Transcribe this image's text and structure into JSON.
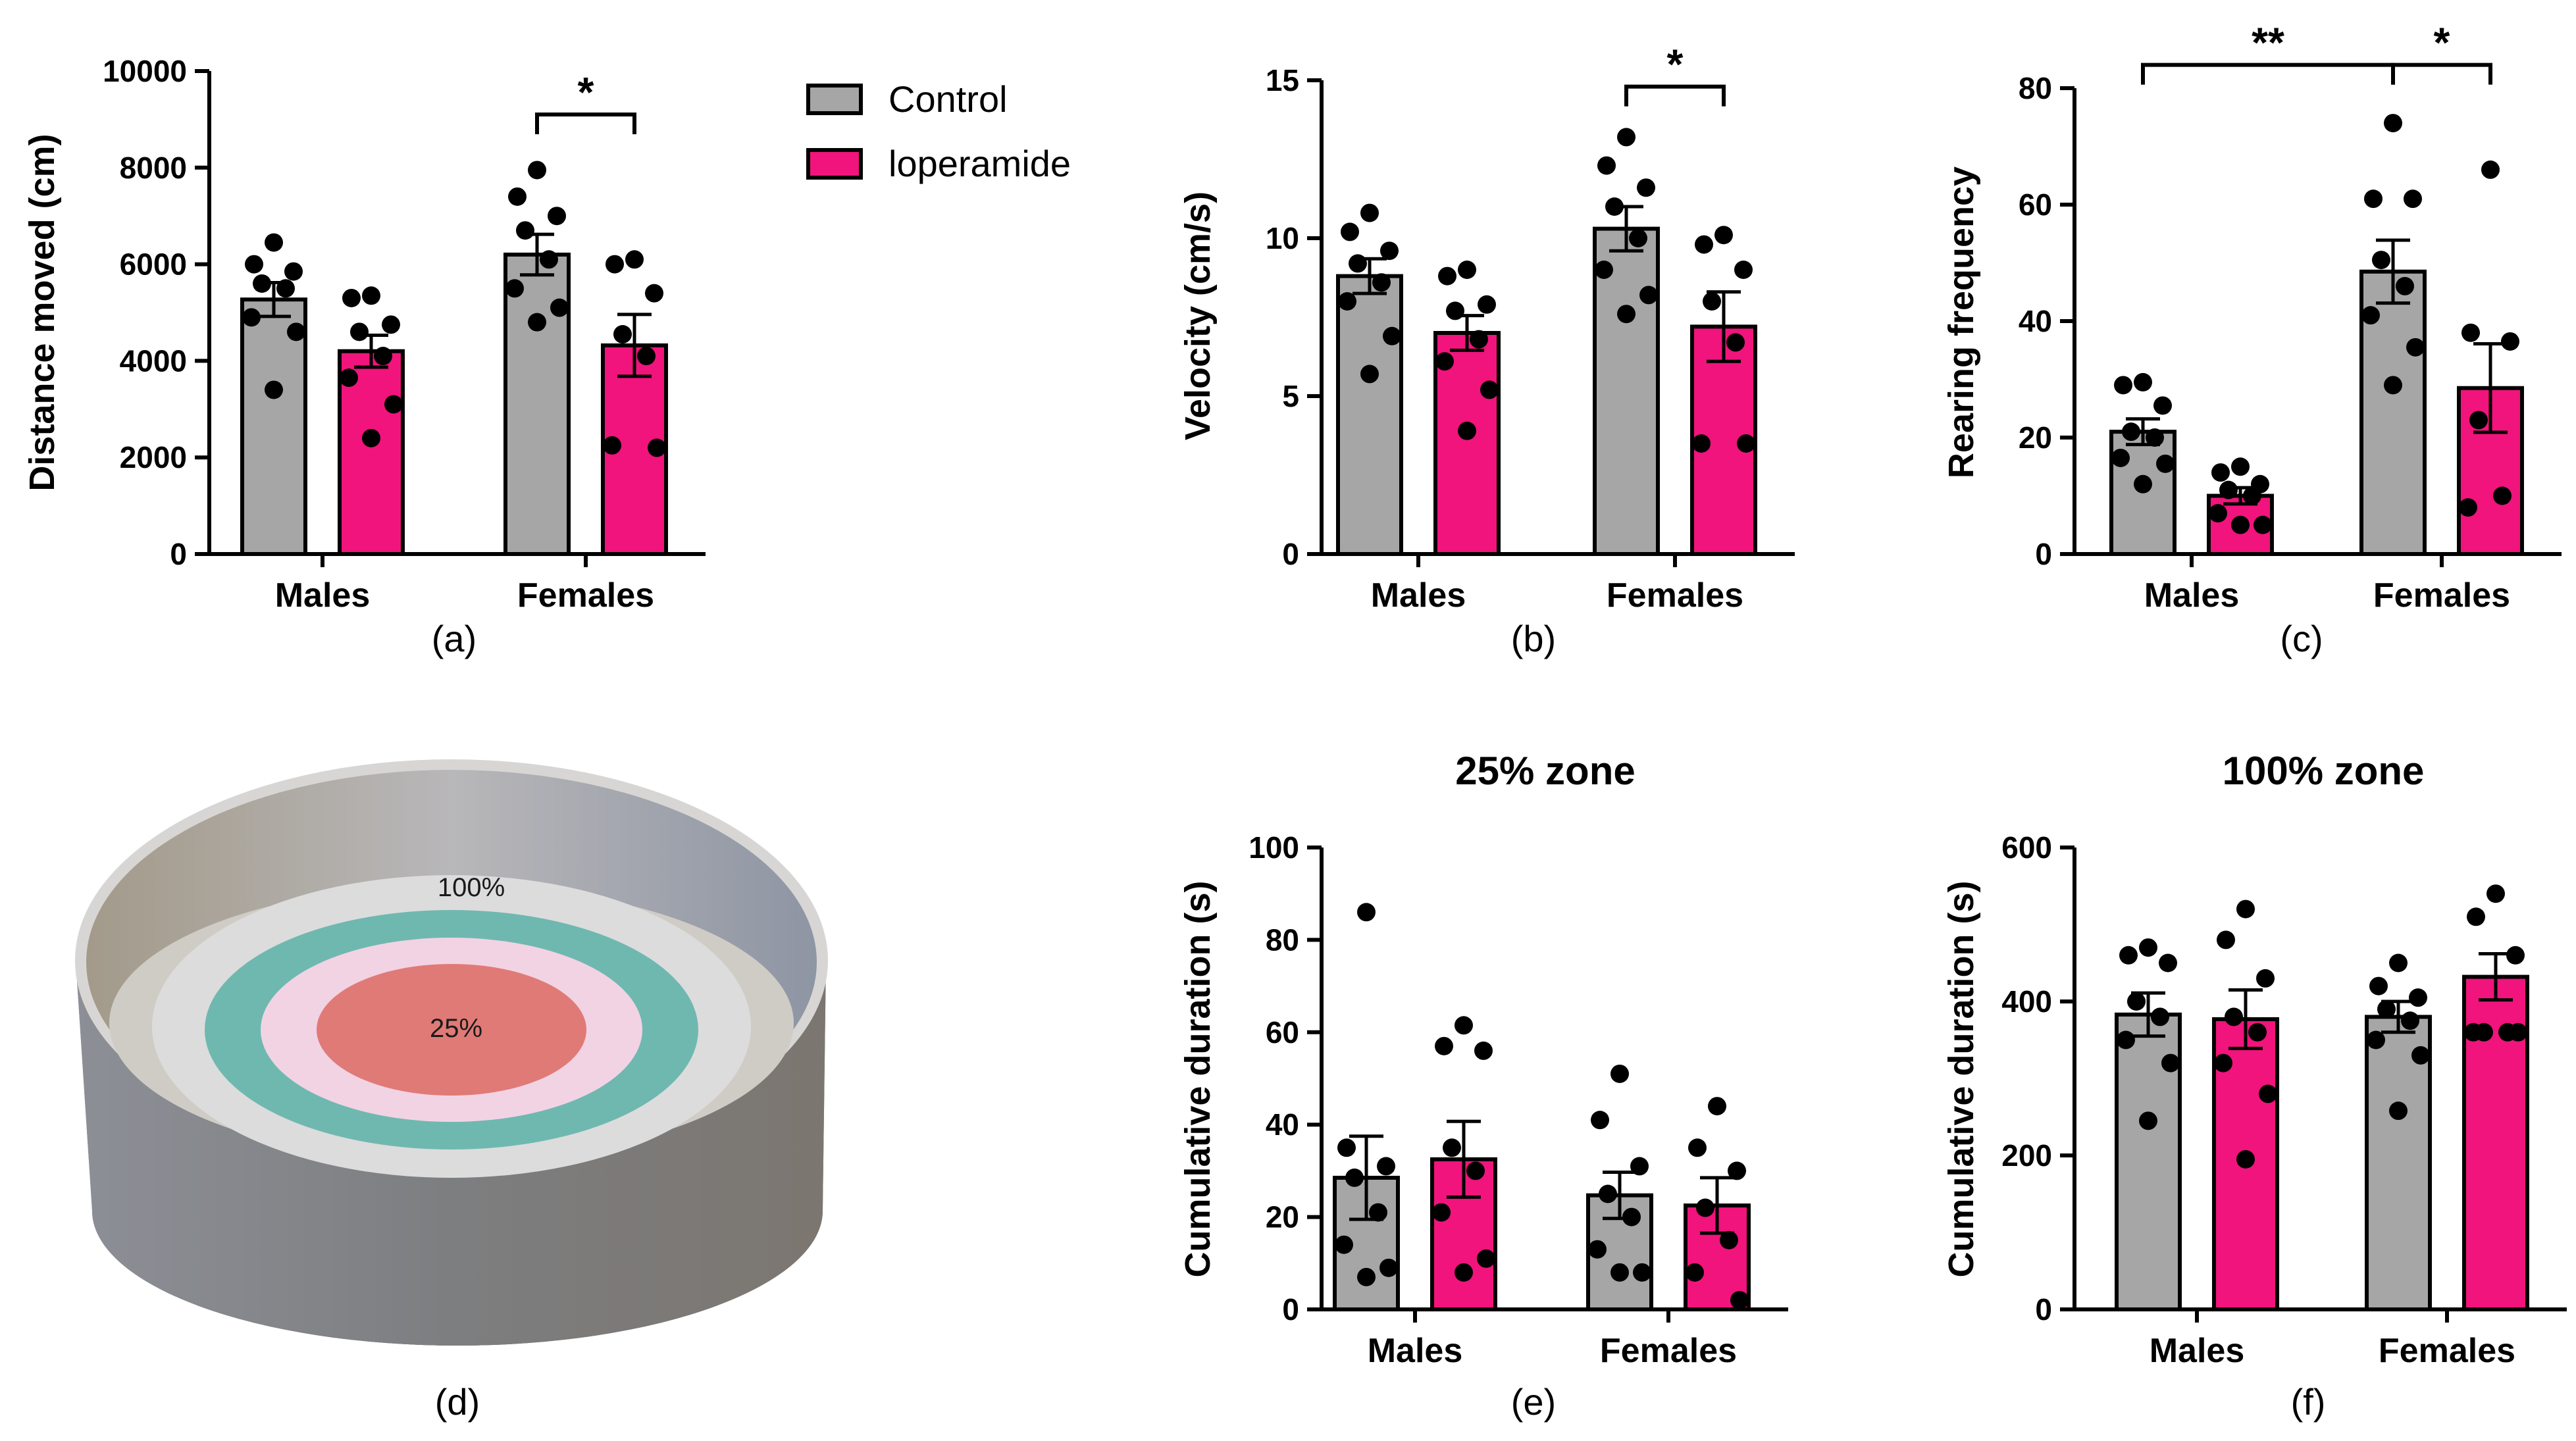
{
  "legend": {
    "entries": [
      {
        "label": "Control",
        "color": "#a6a6a6"
      },
      {
        "label": "loperamide",
        "color": "#f0147c"
      }
    ]
  },
  "arena": {
    "caption": "(d)",
    "zone_outer_label": "100%",
    "zone_inner_label": "25%",
    "colors": {
      "wall": "#8a8c90",
      "floor": "#cfccc6",
      "ring_light": "#dcdcdc",
      "ring_teal": "#6fb8b0",
      "ring_pink": "#f1d3e4",
      "center": "#e07a76"
    }
  },
  "chart_data": [
    {
      "id": "a",
      "type": "bar",
      "caption": "(a)",
      "title": "",
      "ylabel": "Distance moved (cm)",
      "ylim": [
        0,
        10000
      ],
      "yticks": [
        0,
        2000,
        4000,
        6000,
        8000,
        10000
      ],
      "categories": [
        "Males",
        "Females"
      ],
      "series": [
        {
          "name": "Control",
          "color": "#a6a6a6",
          "values": [
            5270,
            6200
          ],
          "sem": [
            350,
            420
          ],
          "points": [
            [
              6450,
              6000,
              5850,
              5600,
              5500,
              4900,
              4600,
              3400
            ],
            [
              7950,
              7400,
              7000,
              6700,
              6100,
              5500,
              5100,
              4800
            ]
          ]
        },
        {
          "name": "loperamide",
          "color": "#f0147c",
          "values": [
            4200,
            4320
          ],
          "sem": [
            330,
            640
          ],
          "points": [
            [
              5350,
              5300,
              4750,
              4600,
              4100,
              3650,
              3100,
              2400
            ],
            [
              6100,
              6000,
              5400,
              4550,
              4100,
              2250,
              2200
            ]
          ]
        }
      ],
      "significance": [
        {
          "label": "*",
          "from": [
            1,
            0
          ],
          "to": [
            1,
            1
          ],
          "y": 9100
        }
      ]
    },
    {
      "id": "b",
      "type": "bar",
      "caption": "(b)",
      "title": "",
      "ylabel": "Velocity (cm/s)",
      "ylim": [
        0,
        15
      ],
      "yticks": [
        0,
        5,
        10,
        15
      ],
      "categories": [
        "Males",
        "Females"
      ],
      "series": [
        {
          "name": "Control",
          "color": "#a6a6a6",
          "values": [
            8.8,
            10.3
          ],
          "sem": [
            0.55,
            0.7
          ],
          "points": [
            [
              10.8,
              10.2,
              9.6,
              9.2,
              8.6,
              8.0,
              6.9,
              5.7
            ],
            [
              13.2,
              12.3,
              11.6,
              11.0,
              10.0,
              9.0,
              8.2,
              7.6
            ]
          ]
        },
        {
          "name": "loperamide",
          "color": "#f0147c",
          "values": [
            7.0,
            7.2
          ],
          "sem": [
            0.55,
            1.1
          ],
          "points": [
            [
              9.0,
              8.8,
              7.9,
              7.7,
              6.8,
              6.1,
              5.2,
              3.9
            ],
            [
              10.1,
              9.8,
              9.0,
              8.0,
              6.7,
              3.5,
              3.5
            ]
          ]
        }
      ],
      "significance": [
        {
          "label": "*",
          "from": [
            1,
            0
          ],
          "to": [
            1,
            1
          ],
          "y": 14.8
        }
      ]
    },
    {
      "id": "c",
      "type": "bar",
      "caption": "(c)",
      "title": "",
      "ylabel": "Rearing frequency",
      "ylim": [
        0,
        80
      ],
      "yticks": [
        0,
        20,
        40,
        60,
        80
      ],
      "categories": [
        "Males",
        "Females"
      ],
      "series": [
        {
          "name": "Control",
          "color": "#a6a6a6",
          "values": [
            21,
            48.5
          ],
          "sem": [
            2.2,
            5.4
          ],
          "points": [
            [
              29.5,
              29,
              25.5,
              21,
              20,
              16.5,
              15.5,
              12
            ],
            [
              74,
              61,
              61,
              50.5,
              46,
              41,
              35.5,
              29
            ]
          ]
        },
        {
          "name": "loperamide",
          "color": "#f0147c",
          "values": [
            10,
            28.5
          ],
          "sem": [
            1.4,
            7.6
          ],
          "points": [
            [
              15,
              14,
              12,
              11,
              10,
              7,
              5,
              5
            ],
            [
              66,
              38,
              36.5,
              23,
              10,
              8
            ]
          ]
        }
      ],
      "significance": [
        {
          "label": "**",
          "from": [
            0,
            0
          ],
          "to": [
            1,
            0
          ],
          "y": 84
        },
        {
          "label": "*",
          "from": [
            1,
            0
          ],
          "to": [
            1,
            1
          ],
          "y": 84
        }
      ]
    },
    {
      "id": "e",
      "type": "bar",
      "caption": "(e)",
      "title": "25% zone",
      "ylabel": "Cumulative duration (s)",
      "ylim": [
        0,
        100
      ],
      "yticks": [
        0,
        20,
        40,
        60,
        80,
        100
      ],
      "categories": [
        "Males",
        "Females"
      ],
      "series": [
        {
          "name": "Control",
          "color": "#a6a6a6",
          "values": [
            28.5,
            24.7
          ],
          "sem": [
            9,
            5
          ],
          "points": [
            [
              86,
              35,
              31,
              28.5,
              21,
              14,
              9,
              7
            ],
            [
              51,
              41,
              31,
              25,
              20,
              13,
              8,
              8
            ]
          ]
        },
        {
          "name": "loperamide",
          "color": "#f0147c",
          "values": [
            32.5,
            22.5
          ],
          "sem": [
            8.2,
            6
          ],
          "points": [
            [
              61.5,
              57,
              56,
              35,
              30,
              21,
              11,
              8
            ],
            [
              44,
              35,
              30,
              22,
              15,
              8,
              2
            ]
          ]
        }
      ],
      "significance": []
    },
    {
      "id": "f",
      "type": "bar",
      "caption": "(f)",
      "title": "100% zone",
      "ylabel": "Cumulative duration (s)",
      "ylim": [
        0,
        600
      ],
      "yticks": [
        0,
        200,
        400,
        600
      ],
      "categories": [
        "Males",
        "Females"
      ],
      "series": [
        {
          "name": "Control",
          "color": "#a6a6a6",
          "values": [
            383,
            380
          ],
          "sem": [
            28,
            20
          ],
          "points": [
            [
              470,
              460,
              450,
              400,
              380,
              350,
              320,
              245
            ],
            [
              450,
              420,
              405,
              390,
              375,
              350,
              330,
              258
            ]
          ]
        },
        {
          "name": "loperamide",
          "color": "#f0147c",
          "values": [
            377,
            432
          ],
          "sem": [
            38,
            30
          ],
          "points": [
            [
              520,
              480,
              430,
              380,
              360,
              320,
              280,
              195
            ],
            [
              540,
              510,
              460,
              360,
              360,
              360,
              360
            ]
          ]
        }
      ],
      "significance": []
    }
  ]
}
